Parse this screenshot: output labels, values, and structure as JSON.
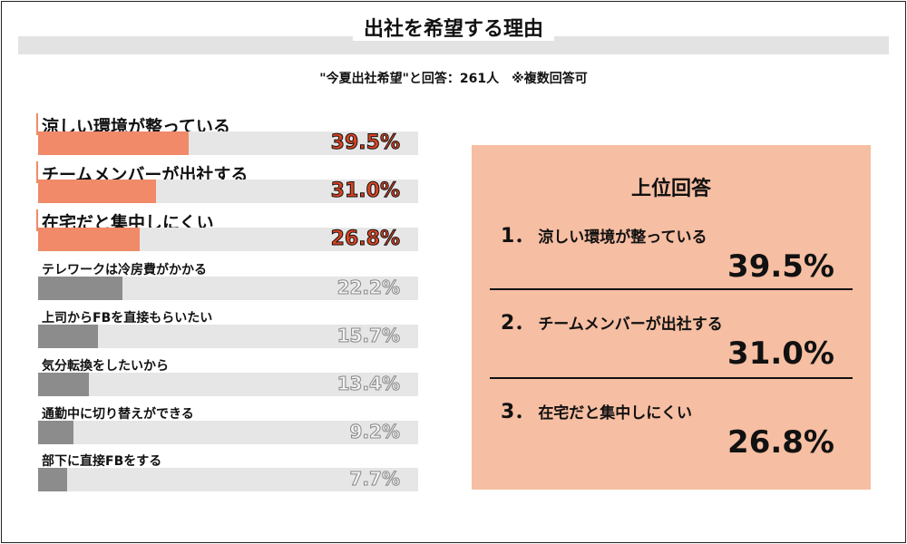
{
  "title": "出社を希望する理由",
  "subtitle": "\"今夏出社希望\"と回答：261人　※複数回答可",
  "colors": {
    "highlight": "#f08a68",
    "other": "#8c8c8c",
    "track": "#e6e6e6",
    "panel": "#f6bea2"
  },
  "chart_data": {
    "type": "bar",
    "orientation": "horizontal",
    "categories": [
      "涼しい環境が整っている",
      "チームメンバーが出社する",
      "在宅だと集中しにくい",
      "テレワークは冷房費がかかる",
      "上司からFBを直接もらいたい",
      "気分転換をしたいから",
      "通勤中に切り替えができる",
      "部下に直接FBをする"
    ],
    "values": [
      39.5,
      31.0,
      26.8,
      22.2,
      15.7,
      13.4,
      9.2,
      7.7
    ],
    "value_labels": [
      "39.5%",
      "31.0%",
      "26.8%",
      "22.2%",
      "15.7%",
      "13.4%",
      "9.2%",
      "7.7%"
    ],
    "highlighted_top": 3,
    "xlim": [
      0,
      100
    ],
    "unit": "%"
  },
  "summary": {
    "title": "上位回答",
    "items": [
      {
        "rank": "1．",
        "label": "涼しい環境が整っている",
        "value": "39.5%"
      },
      {
        "rank": "2．",
        "label": "チームメンバーが出社する",
        "value": "31.0%"
      },
      {
        "rank": "3．",
        "label": "在宅だと集中しにくい",
        "value": "26.8%"
      }
    ]
  }
}
